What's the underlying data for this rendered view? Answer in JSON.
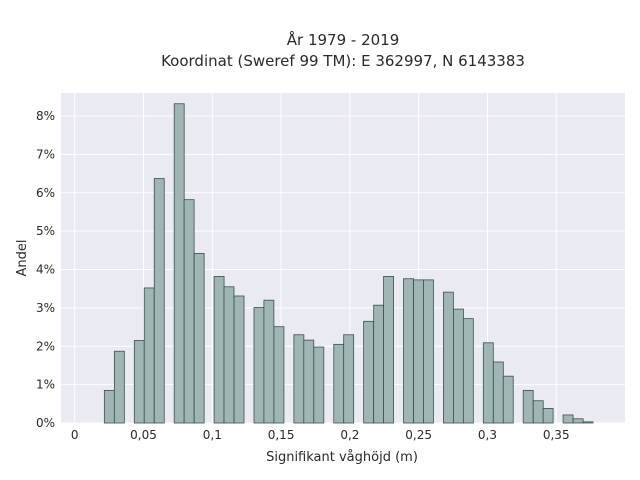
{
  "chart_data": {
    "type": "histogram",
    "title_line1": "År 1979 - 2019",
    "title_line2": "Koordinat (Sweref 99 TM): E 362997, N 6143383",
    "xlabel": "Signifikant våghöjd (m)",
    "ylabel": "Andel",
    "xlim": [
      -0.01,
      0.4
    ],
    "ylim": [
      0,
      8.6
    ],
    "bin_width": 0.00725,
    "x_ticks": [
      {
        "value": 0,
        "label": "0"
      },
      {
        "value": 0.05,
        "label": "0,05"
      },
      {
        "value": 0.1,
        "label": "0,1"
      },
      {
        "value": 0.15,
        "label": "0,15"
      },
      {
        "value": 0.2,
        "label": "0,2"
      },
      {
        "value": 0.25,
        "label": "0,25"
      },
      {
        "value": 0.3,
        "label": "0,3"
      },
      {
        "value": 0.35,
        "label": "0,35"
      }
    ],
    "y_ticks": [
      {
        "value": 0,
        "label": "0%"
      },
      {
        "value": 1,
        "label": "1%"
      },
      {
        "value": 2,
        "label": "2%"
      },
      {
        "value": 3,
        "label": "3%"
      },
      {
        "value": 4,
        "label": "4%"
      },
      {
        "value": 5,
        "label": "5%"
      },
      {
        "value": 6,
        "label": "6%"
      },
      {
        "value": 7,
        "label": "7%"
      },
      {
        "value": 8,
        "label": "8%"
      }
    ],
    "bins": [
      {
        "x0": 0.0215,
        "percent": 0.85
      },
      {
        "x0": 0.0288,
        "percent": 1.87
      },
      {
        "x0": 0.0433,
        "percent": 2.15
      },
      {
        "x0": 0.0505,
        "percent": 3.52
      },
      {
        "x0": 0.0578,
        "percent": 6.37
      },
      {
        "x0": 0.0723,
        "percent": 8.32
      },
      {
        "x0": 0.0795,
        "percent": 5.82
      },
      {
        "x0": 0.0868,
        "percent": 4.42
      },
      {
        "x0": 0.1013,
        "percent": 3.82
      },
      {
        "x0": 0.1085,
        "percent": 3.55
      },
      {
        "x0": 0.1158,
        "percent": 3.31
      },
      {
        "x0": 0.1303,
        "percent": 3.01
      },
      {
        "x0": 0.1375,
        "percent": 3.2
      },
      {
        "x0": 0.1448,
        "percent": 2.51
      },
      {
        "x0": 0.1593,
        "percent": 2.3
      },
      {
        "x0": 0.1665,
        "percent": 2.16
      },
      {
        "x0": 0.1738,
        "percent": 1.98
      },
      {
        "x0": 0.1883,
        "percent": 2.05
      },
      {
        "x0": 0.1955,
        "percent": 2.3
      },
      {
        "x0": 0.21,
        "percent": 2.65
      },
      {
        "x0": 0.2173,
        "percent": 3.07
      },
      {
        "x0": 0.2245,
        "percent": 3.82
      },
      {
        "x0": 0.239,
        "percent": 3.76
      },
      {
        "x0": 0.2463,
        "percent": 3.73
      },
      {
        "x0": 0.2535,
        "percent": 3.73
      },
      {
        "x0": 0.268,
        "percent": 3.41
      },
      {
        "x0": 0.2753,
        "percent": 2.97
      },
      {
        "x0": 0.2825,
        "percent": 2.72
      },
      {
        "x0": 0.297,
        "percent": 2.09
      },
      {
        "x0": 0.3043,
        "percent": 1.59
      },
      {
        "x0": 0.3115,
        "percent": 1.22
      },
      {
        "x0": 0.326,
        "percent": 0.85
      },
      {
        "x0": 0.3333,
        "percent": 0.58
      },
      {
        "x0": 0.3405,
        "percent": 0.38
      },
      {
        "x0": 0.355,
        "percent": 0.21
      },
      {
        "x0": 0.3623,
        "percent": 0.11
      },
      {
        "x0": 0.3695,
        "percent": 0.03
      }
    ],
    "colors": {
      "bar_fill": "#9fb6b5",
      "bar_edge": "#3d4f4e",
      "plot_bg": "#e9eaf2",
      "grid": "#ffffff"
    },
    "grid": true
  }
}
